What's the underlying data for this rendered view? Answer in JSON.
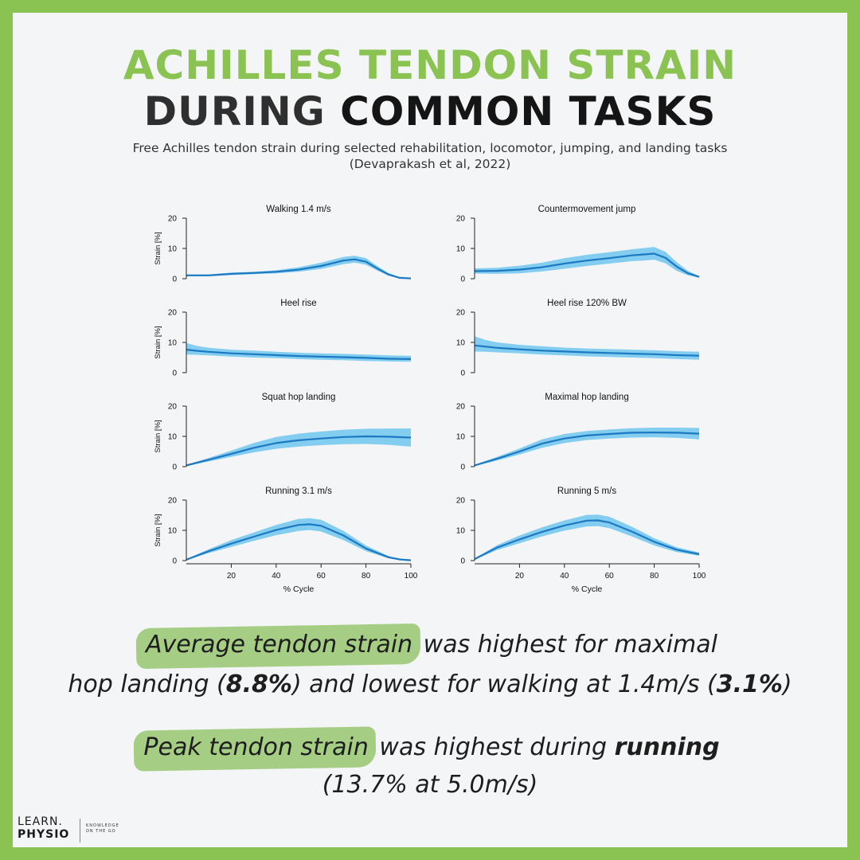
{
  "header": {
    "title_line1": "ACHILLES TENDON STRAIN",
    "title_line2_a": "DURING ",
    "title_line2_b": "COMMON TASKS",
    "subtitle_line1": "Free Achilles tendon strain during selected rehabilitation, locomotor, jumping, and landing tasks",
    "subtitle_line2": "(Devaprakash et al, 2022)"
  },
  "chart_data": [
    {
      "type": "area",
      "title": "Walking 1.4 m/s",
      "ylabel": "Strain [%]",
      "xlabel": "",
      "ylim": [
        0,
        20
      ],
      "yticks": [
        0,
        10,
        20
      ],
      "xlim": [
        0,
        100
      ],
      "xticks": [],
      "x": [
        0,
        10,
        20,
        30,
        40,
        50,
        60,
        70,
        75,
        80,
        85,
        90,
        95,
        100
      ],
      "mean": [
        1.1,
        1.1,
        1.6,
        1.9,
        2.3,
        3.0,
        4.2,
        6.0,
        6.4,
        5.6,
        3.4,
        1.4,
        0.3,
        0.1
      ],
      "lower": [
        0.8,
        0.8,
        1.2,
        1.5,
        1.8,
        2.3,
        3.2,
        4.8,
        5.3,
        4.6,
        2.7,
        1.0,
        0.2,
        0.0
      ],
      "upper": [
        1.4,
        1.4,
        2.0,
        2.3,
        2.8,
        3.8,
        5.3,
        7.2,
        7.6,
        6.8,
        4.2,
        1.9,
        0.5,
        0.2
      ]
    },
    {
      "type": "area",
      "title": "Countermovement jump",
      "ylabel": "",
      "xlabel": "",
      "ylim": [
        0,
        20
      ],
      "yticks": [
        0,
        10,
        20
      ],
      "xlim": [
        0,
        100
      ],
      "xticks": [],
      "x": [
        0,
        10,
        20,
        30,
        40,
        50,
        60,
        70,
        75,
        80,
        85,
        90,
        95,
        100
      ],
      "mean": [
        2.5,
        2.6,
        3.0,
        3.8,
        5.0,
        6.0,
        6.8,
        7.7,
        8.0,
        8.3,
        6.9,
        4.0,
        1.8,
        0.6
      ],
      "lower": [
        1.7,
        1.6,
        1.8,
        2.4,
        3.3,
        4.2,
        5.0,
        5.8,
        6.0,
        6.3,
        5.1,
        2.6,
        1.1,
        0.4
      ],
      "upper": [
        3.4,
        3.6,
        4.3,
        5.3,
        6.8,
        7.9,
        8.8,
        9.7,
        10.1,
        10.5,
        8.9,
        5.5,
        2.6,
        0.9
      ]
    },
    {
      "type": "area",
      "title": "Heel rise",
      "ylabel": "Strain [%]",
      "xlabel": "",
      "ylim": [
        0,
        20
      ],
      "yticks": [
        0,
        10,
        20
      ],
      "xlim": [
        0,
        100
      ],
      "xticks": [],
      "x": [
        0,
        5,
        10,
        20,
        30,
        40,
        50,
        60,
        70,
        80,
        90,
        100
      ],
      "mean": [
        7.6,
        7.2,
        6.9,
        6.4,
        6.1,
        5.8,
        5.5,
        5.3,
        5.1,
        4.9,
        4.6,
        4.5
      ],
      "lower": [
        6.0,
        5.9,
        5.7,
        5.3,
        5.0,
        4.8,
        4.5,
        4.3,
        4.1,
        3.9,
        3.7,
        3.6
      ],
      "upper": [
        9.8,
        8.8,
        8.2,
        7.6,
        7.3,
        6.9,
        6.6,
        6.4,
        6.2,
        6.0,
        5.7,
        5.6
      ]
    },
    {
      "type": "area",
      "title": "Heel rise 120% BW",
      "ylabel": "",
      "xlabel": "",
      "ylim": [
        0,
        20
      ],
      "yticks": [
        0,
        10,
        20
      ],
      "xlim": [
        0,
        100
      ],
      "xticks": [],
      "x": [
        0,
        5,
        10,
        20,
        30,
        40,
        50,
        60,
        70,
        80,
        90,
        100
      ],
      "mean": [
        9.0,
        8.6,
        8.2,
        7.7,
        7.3,
        7.0,
        6.7,
        6.5,
        6.3,
        6.1,
        5.8,
        5.6
      ],
      "lower": [
        7.0,
        6.9,
        6.7,
        6.4,
        6.0,
        5.7,
        5.4,
        5.2,
        5.0,
        4.8,
        4.5,
        4.3
      ],
      "upper": [
        12.0,
        10.8,
        10.0,
        9.2,
        8.7,
        8.3,
        8.0,
        7.8,
        7.6,
        7.4,
        7.1,
        6.9
      ]
    },
    {
      "type": "area",
      "title": "Squat hop landing",
      "ylabel": "Strain [%]",
      "xlabel": "",
      "ylim": [
        0,
        20
      ],
      "yticks": [
        0,
        10,
        20
      ],
      "xlim": [
        0,
        100
      ],
      "xticks": [],
      "x": [
        0,
        10,
        20,
        30,
        40,
        50,
        60,
        70,
        80,
        90,
        100
      ],
      "mean": [
        0.4,
        2.3,
        4.2,
        6.2,
        7.8,
        8.7,
        9.3,
        9.8,
        10.0,
        9.9,
        9.6
      ],
      "lower": [
        0.2,
        1.7,
        3.2,
        4.7,
        5.9,
        6.6,
        7.1,
        7.4,
        7.5,
        7.2,
        6.6
      ],
      "upper": [
        0.6,
        2.9,
        5.3,
        7.8,
        9.8,
        10.9,
        11.6,
        12.2,
        12.5,
        12.6,
        12.6
      ]
    },
    {
      "type": "area",
      "title": "Maximal hop landing",
      "ylabel": "",
      "xlabel": "",
      "ylim": [
        0,
        20
      ],
      "yticks": [
        0,
        10,
        20
      ],
      "xlim": [
        0,
        100
      ],
      "xticks": [],
      "x": [
        0,
        10,
        20,
        30,
        40,
        50,
        60,
        70,
        80,
        90,
        100
      ],
      "mean": [
        0.4,
        2.6,
        5.0,
        7.6,
        9.3,
        10.3,
        10.8,
        11.2,
        11.3,
        11.2,
        10.9
      ],
      "lower": [
        0.2,
        2.0,
        4.0,
        6.2,
        7.8,
        8.8,
        9.3,
        9.6,
        9.7,
        9.5,
        9.0
      ],
      "upper": [
        0.6,
        3.2,
        6.0,
        9.0,
        10.8,
        11.8,
        12.3,
        12.7,
        12.9,
        12.9,
        12.8
      ]
    },
    {
      "type": "area",
      "title": "Running 3.1 m/s",
      "ylabel": "Strain [%]",
      "xlabel": "% Cycle",
      "ylim": [
        0,
        20
      ],
      "yticks": [
        0,
        10,
        20
      ],
      "xlim": [
        0,
        100
      ],
      "xticks": [
        20,
        40,
        60,
        80,
        100
      ],
      "x": [
        0,
        10,
        20,
        30,
        40,
        50,
        55,
        60,
        70,
        80,
        90,
        95,
        100
      ],
      "mean": [
        0.3,
        3.1,
        5.6,
        7.9,
        10.1,
        11.8,
        12.0,
        11.5,
        8.3,
        4.0,
        1.1,
        0.4,
        0.1
      ],
      "lower": [
        0.2,
        2.5,
        4.5,
        6.5,
        8.4,
        9.8,
        10.1,
        9.6,
        6.8,
        3.1,
        0.8,
        0.3,
        0.0
      ],
      "upper": [
        0.5,
        3.8,
        6.8,
        9.3,
        11.8,
        13.8,
        14.0,
        13.5,
        9.8,
        5.0,
        1.5,
        0.6,
        0.2
      ]
    },
    {
      "type": "area",
      "title": "Running 5 m/s",
      "ylabel": "",
      "xlabel": "% Cycle",
      "ylim": [
        0,
        20
      ],
      "yticks": [
        0,
        10,
        20
      ],
      "xlim": [
        0,
        100
      ],
      "xticks": [
        20,
        40,
        60,
        80,
        100
      ],
      "x": [
        0,
        10,
        20,
        30,
        40,
        50,
        55,
        60,
        70,
        80,
        90,
        100
      ],
      "mean": [
        0.5,
        4.3,
        7.0,
        9.5,
        11.6,
        13.2,
        13.3,
        12.6,
        9.6,
        6.2,
        3.6,
        2.1
      ],
      "lower": [
        0.3,
        3.5,
        5.7,
        8.0,
        9.9,
        11.3,
        11.4,
        10.7,
        8.0,
        5.0,
        2.8,
        1.6
      ],
      "upper": [
        0.7,
        5.1,
        8.3,
        11.0,
        13.3,
        15.1,
        15.2,
        14.5,
        11.2,
        7.4,
        4.4,
        2.7
      ]
    }
  ],
  "statements": {
    "s1_hl": "Average tendon strain",
    "s1_a": " was highest for maximal",
    "s1_b": "hop landing (",
    "s1_val1": "8.8%",
    "s1_c": ") and lowest for walking at 1.4m/s (",
    "s1_val2": "3.1%",
    "s1_d": ")",
    "s2_hl": "Peak tendon strain",
    "s2_a": " was highest during ",
    "s2_bold": "running",
    "s2_b": "(13.7% at 5.0m/s)"
  },
  "logo": {
    "line1": "LEARN.",
    "line2": "PHYSIO",
    "tagline1": "KNOWLEDGE",
    "tagline2": "ON THE GO"
  },
  "colors": {
    "border": "#8bc352",
    "title_green": "#8bc352",
    "band": "#6ec6ef",
    "line": "#1c79c2",
    "highlight": "#a6cd84"
  }
}
